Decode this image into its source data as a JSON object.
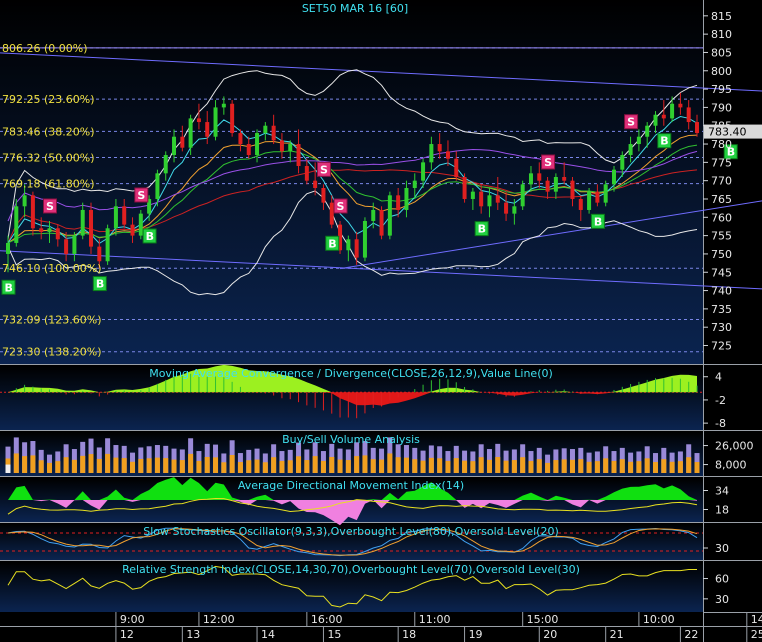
{
  "chart_data": [
    {
      "type": "candlestick",
      "title": "SET50 MAR 16",
      "interval": "[60]",
      "last_price": "783.40",
      "y_ticks": [
        815,
        810,
        805,
        800,
        795,
        790,
        785,
        780,
        775,
        770,
        765,
        760,
        755,
        750,
        745,
        740,
        735,
        730,
        725
      ],
      "ylim": [
        720.5,
        818.5
      ],
      "fib_levels": [
        {
          "label": "806.26 (0.00%)",
          "value": 806.26
        },
        {
          "label": "792.25 (23.60%)",
          "value": 792.25
        },
        {
          "label": "783.46 (38.20%)",
          "value": 783.46
        },
        {
          "label": "776.32 (50.00%)",
          "value": 776.32
        },
        {
          "label": "769.18 (61.80%)",
          "value": 769.18
        },
        {
          "label": "746.10 (100.00%)",
          "value": 746.1
        },
        {
          "label": "732.09 (123.60%)",
          "value": 732.09
        },
        {
          "label": "723.30 (138.20%)",
          "value": 723.3
        }
      ],
      "signals": [
        {
          "type": "B",
          "bar": 0
        },
        {
          "type": "S",
          "bar": 5
        },
        {
          "type": "B",
          "bar": 11
        },
        {
          "type": "S",
          "bar": 16
        },
        {
          "type": "B",
          "bar": 17
        },
        {
          "type": "S",
          "bar": 38
        },
        {
          "type": "S",
          "bar": 40
        },
        {
          "type": "B",
          "bar": 39
        },
        {
          "type": "B",
          "bar": 57
        },
        {
          "type": "S",
          "bar": 65
        },
        {
          "type": "B",
          "bar": 71
        },
        {
          "type": "S",
          "bar": 75
        },
        {
          "type": "B",
          "bar": 79
        },
        {
          "type": "B",
          "bar": 87
        }
      ],
      "candles": [
        [
          750,
          755,
          745,
          753
        ],
        [
          753,
          765,
          752,
          763
        ],
        [
          763,
          769,
          760,
          766
        ],
        [
          766,
          767,
          755,
          757
        ],
        [
          757,
          760,
          754,
          756
        ],
        [
          756,
          759,
          753,
          757
        ],
        [
          757,
          758,
          752,
          754
        ],
        [
          754,
          756,
          748,
          750
        ],
        [
          750,
          756,
          748,
          755
        ],
        [
          755,
          764,
          754,
          762
        ],
        [
          762,
          764,
          750,
          752
        ],
        [
          752,
          754,
          746,
          748
        ],
        [
          748,
          758,
          747,
          757
        ],
        [
          757,
          765,
          755,
          763
        ],
        [
          763,
          765,
          757,
          758
        ],
        [
          758,
          760,
          753,
          755
        ],
        [
          755,
          762,
          754,
          761
        ],
        [
          761,
          766,
          759,
          765
        ],
        [
          765,
          773,
          763,
          772
        ],
        [
          772,
          778,
          770,
          777
        ],
        [
          777,
          784,
          775,
          782
        ],
        [
          782,
          785,
          778,
          779
        ],
        [
          779,
          788,
          777,
          787
        ],
        [
          787,
          791,
          784,
          786
        ],
        [
          786,
          789,
          780,
          782
        ],
        [
          782,
          792,
          781,
          790
        ],
        [
          790,
          793,
          788,
          791
        ],
        [
          791,
          792,
          782,
          783
        ],
        [
          783,
          784,
          778,
          780
        ],
        [
          780,
          782,
          776,
          777
        ],
        [
          777,
          784,
          775,
          783
        ],
        [
          783,
          786,
          781,
          785
        ],
        [
          785,
          788,
          780,
          781
        ],
        [
          781,
          783,
          776,
          778
        ],
        [
          778,
          781,
          775,
          780
        ],
        [
          780,
          784,
          772,
          774
        ],
        [
          774,
          776,
          769,
          770
        ],
        [
          770,
          775,
          766,
          768
        ],
        [
          768,
          769,
          762,
          764
        ],
        [
          764,
          766,
          757,
          758
        ],
        [
          758,
          759,
          750,
          751
        ],
        [
          751,
          755,
          748,
          754
        ],
        [
          754,
          756,
          747,
          749
        ],
        [
          749,
          760,
          748,
          759
        ],
        [
          759,
          764,
          757,
          762
        ],
        [
          762,
          763,
          754,
          755
        ],
        [
          755,
          767,
          754,
          766
        ],
        [
          766,
          768,
          760,
          762
        ],
        [
          762,
          770,
          760,
          768
        ],
        [
          768,
          772,
          765,
          770
        ],
        [
          770,
          776,
          768,
          775
        ],
        [
          775,
          782,
          773,
          780
        ],
        [
          780,
          783,
          776,
          778
        ],
        [
          778,
          781,
          774,
          776
        ],
        [
          776,
          778,
          770,
          771
        ],
        [
          771,
          772,
          764,
          765
        ],
        [
          765,
          768,
          762,
          767
        ],
        [
          767,
          769,
          761,
          763
        ],
        [
          763,
          768,
          760,
          766
        ],
        [
          766,
          771,
          762,
          764
        ],
        [
          764,
          767,
          759,
          761
        ],
        [
          761,
          765,
          758,
          763
        ],
        [
          763,
          770,
          762,
          769
        ],
        [
          769,
          774,
          767,
          772
        ],
        [
          772,
          775,
          768,
          770
        ],
        [
          770,
          771,
          765,
          767
        ],
        [
          767,
          772,
          765,
          771
        ],
        [
          771,
          775,
          769,
          770
        ],
        [
          770,
          771,
          763,
          765
        ],
        [
          765,
          766,
          759,
          762
        ],
        [
          762,
          768,
          761,
          767
        ],
        [
          767,
          769,
          763,
          764
        ],
        [
          764,
          770,
          763,
          769
        ],
        [
          769,
          774,
          767,
          773
        ],
        [
          773,
          778,
          771,
          777
        ],
        [
          777,
          782,
          775,
          780
        ],
        [
          780,
          784,
          778,
          782
        ],
        [
          782,
          786,
          779,
          785
        ],
        [
          785,
          789,
          783,
          788
        ],
        [
          788,
          792,
          785,
          787
        ],
        [
          787,
          793,
          786,
          791
        ],
        [
          791,
          794,
          788,
          790
        ],
        [
          790,
          792,
          784,
          786
        ],
        [
          786,
          788,
          782,
          783
        ]
      ]
    },
    {
      "type": "area",
      "title": "Moving Average Convergence / Divergence(CLOSE,26,12,9),Value Line(0)",
      "y_ticks": [
        "4",
        "-2",
        "-8"
      ],
      "ylim": [
        -9,
        6
      ]
    },
    {
      "type": "bar",
      "title": "Buy/Sell Volume Analysis",
      "y_ticks": [
        "26,000",
        "8,000"
      ],
      "ylim": [
        0,
        36000
      ]
    },
    {
      "type": "area",
      "title": "Average Directional Movement Index(14)",
      "y_ticks": [
        "34",
        "18"
      ],
      "ylim": [
        10,
        42
      ]
    },
    {
      "type": "line",
      "title": "Slow Stochastics Oscillator(9,3,3),Overbought Level(80),Oversold Level(20)",
      "y_ticks": [
        "30"
      ],
      "ylim": [
        0,
        100
      ]
    },
    {
      "type": "line",
      "title": "Relative Strength Index(CLOSE,14,30,70),Overbought Level(70),Oversold Level(30)",
      "y_ticks": [
        "60",
        "30"
      ],
      "ylim": [
        15,
        80
      ]
    }
  ],
  "x_axis": {
    "times": [
      {
        "label": "9:00",
        "bar": 13
      },
      {
        "label": "12:00",
        "bar": 23
      },
      {
        "label": "16:00",
        "bar": 36
      },
      {
        "label": "11:00",
        "bar": 49
      },
      {
        "label": "15:00",
        "bar": 62
      },
      {
        "label": "10:00",
        "bar": 76
      },
      {
        "label": "14:00",
        "bar": 89
      }
    ],
    "days": [
      {
        "label": "12",
        "bar": 13
      },
      {
        "label": "13",
        "bar": 21
      },
      {
        "label": "14",
        "bar": 30
      },
      {
        "label": "15",
        "bar": 38
      },
      {
        "label": "18",
        "bar": 47
      },
      {
        "label": "19",
        "bar": 55
      },
      {
        "label": "20",
        "bar": 64
      },
      {
        "label": "21",
        "bar": 72
      },
      {
        "label": "22",
        "bar": 81
      },
      {
        "label": "25",
        "bar": 89
      }
    ]
  }
}
